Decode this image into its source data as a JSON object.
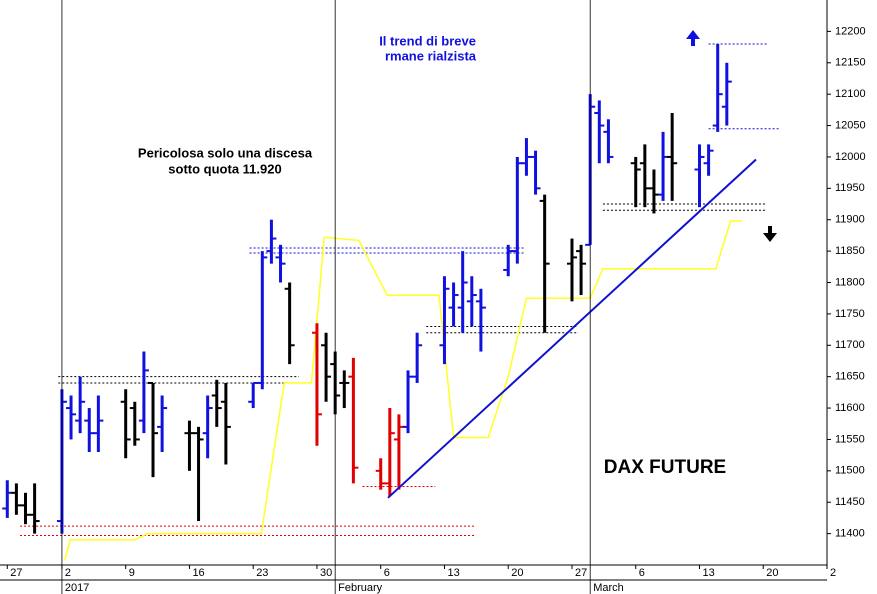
{
  "chart_data": {
    "type": "ohlc",
    "title": "DAX FUTURE",
    "annotations": [
      "Il trend di breve",
      "rmane rialzista",
      "Pericolosa solo una discesa",
      "sotto quota 11.920"
    ],
    "xlim": [
      -0.8,
      90
    ],
    "ylim": [
      11350,
      12250
    ],
    "yticks": [
      11400,
      11450,
      11500,
      11550,
      11600,
      11650,
      11700,
      11750,
      11800,
      11850,
      11900,
      11950,
      12000,
      12050,
      12100,
      12150,
      12200
    ],
    "xticks": [
      {
        "value": 0,
        "label": "27"
      },
      {
        "value": 6,
        "label": "2"
      },
      {
        "value": 13,
        "label": "9"
      },
      {
        "value": 20,
        "label": "16"
      },
      {
        "value": 27,
        "label": "23"
      },
      {
        "value": 34,
        "label": "30"
      },
      {
        "value": 41,
        "label": "6"
      },
      {
        "value": 48,
        "label": "13"
      },
      {
        "value": 55,
        "label": "20"
      },
      {
        "value": 62,
        "label": "27"
      },
      {
        "value": 69,
        "label": "6"
      },
      {
        "value": 76,
        "label": "13"
      },
      {
        "value": 83,
        "label": "20"
      },
      {
        "value": 90,
        "label": "2"
      }
    ],
    "month_ticks": [
      {
        "value": 6,
        "label": "2017"
      },
      {
        "value": 36,
        "label": "February"
      },
      {
        "value": 64,
        "label": "March"
      }
    ],
    "bars": [
      {
        "x": 0,
        "open": 11440,
        "high": 11485,
        "low": 11425,
        "close": 11465,
        "color": "#1010e0"
      },
      {
        "x": 1,
        "open": 11465,
        "high": 11480,
        "low": 11430,
        "close": 11445,
        "color": "#000000"
      },
      {
        "x": 2,
        "open": 11445,
        "high": 11465,
        "low": 11415,
        "close": 11430,
        "color": "#000000"
      },
      {
        "x": 3,
        "open": 11430,
        "high": 11480,
        "low": 11400,
        "close": 11420,
        "color": "#000000"
      },
      {
        "x": 6,
        "open": 11420,
        "high": 11630,
        "low": 11400,
        "close": 11610,
        "color": "#1010e0"
      },
      {
        "x": 7,
        "open": 11600,
        "high": 11620,
        "low": 11550,
        "close": 11590,
        "color": "#1010e0"
      },
      {
        "x": 8,
        "open": 11580,
        "high": 11650,
        "low": 11560,
        "close": 11610,
        "color": "#1010e0"
      },
      {
        "x": 9,
        "open": 11580,
        "high": 11600,
        "low": 11530,
        "close": 11560,
        "color": "#1010e0"
      },
      {
        "x": 10,
        "open": 11560,
        "high": 11620,
        "low": 11530,
        "close": 11580,
        "color": "#1010e0"
      },
      {
        "x": 13,
        "open": 11610,
        "high": 11630,
        "low": 11520,
        "close": 11550,
        "color": "#000000"
      },
      {
        "x": 14,
        "open": 11600,
        "high": 11610,
        "low": 11540,
        "close": 11550,
        "color": "#000000"
      },
      {
        "x": 15,
        "open": 11580,
        "high": 11690,
        "low": 11560,
        "close": 11660,
        "color": "#1010e0"
      },
      {
        "x": 16,
        "open": 11640,
        "high": 11640,
        "low": 11490,
        "close": 11560,
        "color": "#000000"
      },
      {
        "x": 17,
        "open": 11570,
        "high": 11620,
        "low": 11530,
        "close": 11600,
        "color": "#1010e0"
      },
      {
        "x": 20,
        "open": 11560,
        "high": 11580,
        "low": 11500,
        "close": 11560,
        "color": "#000000"
      },
      {
        "x": 21,
        "open": 11560,
        "high": 11570,
        "low": 11420,
        "close": 11550,
        "color": "#000000"
      },
      {
        "x": 22,
        "open": 11560,
        "high": 11620,
        "low": 11520,
        "close": 11600,
        "color": "#1010e0"
      },
      {
        "x": 23,
        "open": 11620,
        "high": 11645,
        "low": 11570,
        "close": 11600,
        "color": "#000000"
      },
      {
        "x": 24,
        "open": 11610,
        "high": 11640,
        "low": 11510,
        "close": 11570,
        "color": "#000000"
      },
      {
        "x": 27,
        "open": 11610,
        "high": 11640,
        "low": 11600,
        "close": 11640,
        "color": "#1010e0"
      },
      {
        "x": 28,
        "open": 11640,
        "high": 11850,
        "low": 11630,
        "close": 11840,
        "color": "#1010e0"
      },
      {
        "x": 29,
        "open": 11850,
        "high": 11900,
        "low": 11830,
        "close": 11870,
        "color": "#1010e0"
      },
      {
        "x": 30,
        "open": 11840,
        "high": 11860,
        "low": 11800,
        "close": 11830,
        "color": "#1010e0"
      },
      {
        "x": 31,
        "open": 11790,
        "high": 11800,
        "low": 11670,
        "close": 11700,
        "color": "#000000"
      },
      {
        "x": 34,
        "open": 11720,
        "high": 11735,
        "low": 11540,
        "close": 11590,
        "color": "#e00000"
      },
      {
        "x": 35,
        "open": 11700,
        "high": 11720,
        "low": 11610,
        "close": 11650,
        "color": "#000000"
      },
      {
        "x": 36,
        "open": 11670,
        "high": 11690,
        "low": 11590,
        "close": 11620,
        "color": "#000000"
      },
      {
        "x": 37,
        "open": 11640,
        "high": 11660,
        "low": 11600,
        "close": 11640,
        "color": "#000000"
      },
      {
        "x": 38,
        "open": 11650,
        "high": 11680,
        "low": 11480,
        "close": 11505,
        "color": "#e00000"
      },
      {
        "x": 41,
        "open": 11500,
        "high": 11520,
        "low": 11470,
        "close": 11480,
        "color": "#e00000"
      },
      {
        "x": 42,
        "open": 11480,
        "high": 11600,
        "low": 11460,
        "close": 11560,
        "color": "#e00000"
      },
      {
        "x": 43,
        "open": 11550,
        "high": 11590,
        "low": 11470,
        "close": 11570,
        "color": "#e00000"
      },
      {
        "x": 44,
        "open": 11570,
        "high": 11660,
        "low": 11560,
        "close": 11650,
        "color": "#1010e0"
      },
      {
        "x": 45,
        "open": 11650,
        "high": 11720,
        "low": 11640,
        "close": 11700,
        "color": "#1010e0"
      },
      {
        "x": 48,
        "open": 11700,
        "high": 11810,
        "low": 11670,
        "close": 11790,
        "color": "#1010e0"
      },
      {
        "x": 49,
        "open": 11760,
        "high": 11800,
        "low": 11730,
        "close": 11780,
        "color": "#1010e0"
      },
      {
        "x": 50,
        "open": 11760,
        "high": 11850,
        "low": 11720,
        "close": 11800,
        "color": "#1010e0"
      },
      {
        "x": 51,
        "open": 11770,
        "high": 11810,
        "low": 11730,
        "close": 11780,
        "color": "#1010e0"
      },
      {
        "x": 52,
        "open": 11770,
        "high": 11790,
        "low": 11690,
        "close": 11760,
        "color": "#1010e0"
      },
      {
        "x": 55,
        "open": 11820,
        "high": 11860,
        "low": 11810,
        "close": 11850,
        "color": "#1010e0"
      },
      {
        "x": 56,
        "open": 11850,
        "high": 12000,
        "low": 11830,
        "close": 11990,
        "color": "#1010e0"
      },
      {
        "x": 57,
        "open": 11990,
        "high": 12030,
        "low": 11970,
        "close": 12000,
        "color": "#1010e0"
      },
      {
        "x": 58,
        "open": 12000,
        "high": 12010,
        "low": 11940,
        "close": 11950,
        "color": "#1010e0"
      },
      {
        "x": 59,
        "open": 11930,
        "high": 11940,
        "low": 11720,
        "close": 11830,
        "color": "#000000"
      },
      {
        "x": 62,
        "open": 11830,
        "high": 11870,
        "low": 11770,
        "close": 11840,
        "color": "#000000"
      },
      {
        "x": 63,
        "open": 11850,
        "high": 11860,
        "low": 11780,
        "close": 11830,
        "color": "#000000"
      },
      {
        "x": 64,
        "open": 11860,
        "high": 12100,
        "low": 11860,
        "close": 12080,
        "color": "#1010e0"
      },
      {
        "x": 65,
        "open": 12070,
        "high": 12090,
        "low": 11990,
        "close": 12050,
        "color": "#1010e0"
      },
      {
        "x": 66,
        "open": 12040,
        "high": 12060,
        "low": 11990,
        "close": 12000,
        "color": "#1010e0"
      },
      {
        "x": 69,
        "open": 11990,
        "high": 12000,
        "low": 11920,
        "close": 11980,
        "color": "#000000"
      },
      {
        "x": 70,
        "open": 11990,
        "high": 12020,
        "low": 11920,
        "close": 11950,
        "color": "#000000"
      },
      {
        "x": 71,
        "open": 11950,
        "high": 11980,
        "low": 11910,
        "close": 11940,
        "color": "#000000"
      },
      {
        "x": 72,
        "open": 11940,
        "high": 12040,
        "low": 11930,
        "close": 12000,
        "color": "#1010e0"
      },
      {
        "x": 73,
        "open": 12000,
        "high": 12070,
        "low": 11930,
        "close": 11990,
        "color": "#000000"
      },
      {
        "x": 76,
        "open": 11980,
        "high": 12020,
        "low": 11920,
        "close": 12000,
        "color": "#1010e0"
      },
      {
        "x": 77,
        "open": 11990,
        "high": 12020,
        "low": 11970,
        "close": 12010,
        "color": "#1010e0"
      },
      {
        "x": 78,
        "open": 12050,
        "high": 12180,
        "low": 12040,
        "close": 12100,
        "color": "#1010e0"
      },
      {
        "x": 79,
        "open": 12080,
        "high": 12150,
        "low": 12050,
        "close": 12120,
        "color": "#1010e0"
      }
    ],
    "indicator": {
      "color": "#ffff20",
      "x": [
        6.3,
        6.9,
        14,
        15.4,
        27.9,
        30.4,
        33.4,
        34.8,
        38.6,
        41.7,
        47.4,
        49,
        52.8,
        55,
        57,
        64,
        65.4,
        77.8,
        79.4,
        80.7
      ],
      "values": [
        11357,
        11390,
        11390,
        11400,
        11400,
        11640,
        11640,
        11872,
        11867,
        11780,
        11780,
        11553,
        11553,
        11650,
        11775,
        11775,
        11822,
        11822,
        11898,
        11898
      ]
    },
    "trendline": {
      "color": "#1010d0",
      "x": [
        41.8,
        82.2
      ],
      "values": [
        11457,
        11996
      ]
    },
    "levels": [
      {
        "value": 11412,
        "from": 1.4,
        "to": 51.4,
        "color": "#e00000"
      },
      {
        "value": 11397,
        "from": 1.4,
        "to": 51.4,
        "color": "#e00000"
      },
      {
        "value": 11650,
        "from": 5.6,
        "to": 32,
        "color": "#000000"
      },
      {
        "value": 11640,
        "from": 5.6,
        "to": 32,
        "color": "#000000"
      },
      {
        "value": 11855,
        "from": 26.6,
        "to": 56.7,
        "color": "#1010e0"
      },
      {
        "value": 11847,
        "from": 26.6,
        "to": 56.7,
        "color": "#1010e0"
      },
      {
        "value": 11475,
        "from": 39,
        "to": 47,
        "color": "#e00000"
      },
      {
        "value": 11730,
        "from": 46,
        "to": 62.7,
        "color": "#000000"
      },
      {
        "value": 11720,
        "from": 46,
        "to": 62.7,
        "color": "#000000"
      },
      {
        "value": 11925,
        "from": 65.4,
        "to": 83.3,
        "color": "#000000"
      },
      {
        "value": 11915,
        "from": 65.4,
        "to": 83.3,
        "color": "#000000"
      },
      {
        "value": 12180,
        "from": 77,
        "to": 83.5,
        "color": "#1010e0"
      },
      {
        "value": 12045,
        "from": 77,
        "to": 84.9,
        "color": "#1010e0"
      }
    ]
  }
}
